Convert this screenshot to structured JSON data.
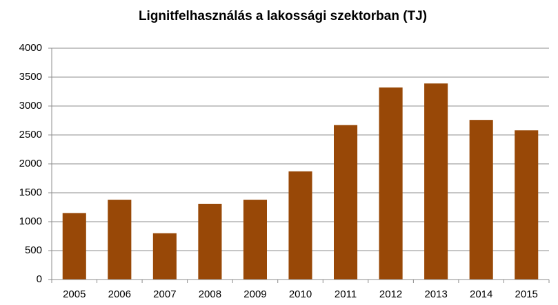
{
  "chart_data": {
    "type": "bar",
    "title": "Lignitfelhasználás a lakossági szektorban (TJ)",
    "categories": [
      "2005",
      "2006",
      "2007",
      "2008",
      "2009",
      "2010",
      "2011",
      "2012",
      "2013",
      "2014",
      "2015"
    ],
    "values": [
      1150,
      1380,
      800,
      1310,
      1380,
      1870,
      2670,
      3320,
      3390,
      2760,
      2580
    ],
    "color": "#984807",
    "ylim": [
      0,
      4000
    ],
    "yticks": [
      0,
      500,
      1000,
      1500,
      2000,
      2500,
      3000,
      3500,
      4000
    ],
    "grid": true
  }
}
